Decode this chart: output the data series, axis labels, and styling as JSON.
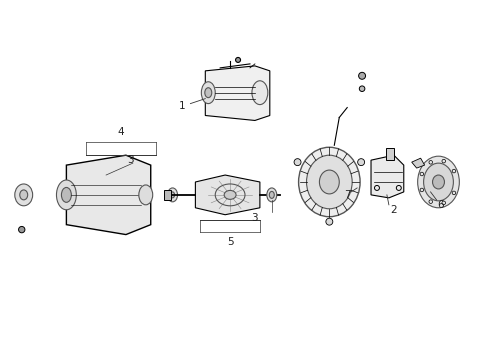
{
  "title": "",
  "background_color": "#ffffff",
  "line_color": "#555555",
  "text_color": "#222222",
  "fig_width": 4.9,
  "fig_height": 3.6,
  "dpi": 100
}
